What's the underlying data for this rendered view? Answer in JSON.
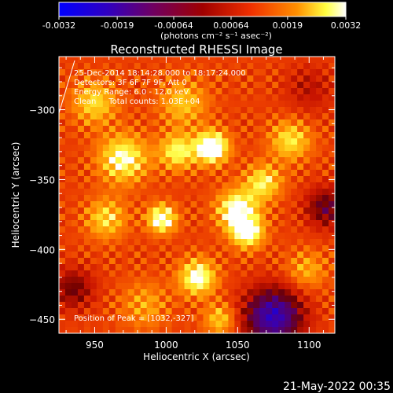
{
  "chart_data": {
    "type": "heatmap",
    "title": "Reconstructed RHESSI Image",
    "xlabel": "Heliocentric X (arcsec)",
    "ylabel": "Heliocentric Y (arcsec)",
    "xlim": [
      925,
      1118
    ],
    "ylim": [
      -460,
      -262
    ],
    "x_ticks": [
      950,
      1000,
      1050,
      1100
    ],
    "y_ticks": [
      -300,
      -350,
      -400,
      -450
    ],
    "colorbar": {
      "ticks": [
        "-0.0032",
        "-0.0019",
        "-0.00064",
        "0.00064",
        "0.0019",
        "0.0032"
      ],
      "range": [
        -0.0032,
        0.0032
      ],
      "unit_label": "(photons cm⁻² s⁻¹ asec⁻²)",
      "colors": [
        "#0000ff",
        "#400080",
        "#800000",
        "#e02000",
        "#ff8000",
        "#ffff40",
        "#ffffff"
      ]
    },
    "annotations": [
      "25-Dec-2014 18:14:28.000 to 18:17:24.000",
      "Detectors: 3F 6F 7F 9F, Att 0",
      "Energy Range: 6.0 - 12.0 keV",
      "Clean     Total counts: 1.03E+04"
    ],
    "peak_label": "Position of Peak = [1032,-327]",
    "peak": [
      1032,
      -327
    ],
    "sources": [
      {
        "x": 1032,
        "y": -327,
        "flux": 0.0032,
        "sigma": 8
      },
      {
        "x": 997,
        "y": -378,
        "flux": 0.0028,
        "sigma": 7
      },
      {
        "x": 1050,
        "y": -372,
        "flux": 0.0027,
        "sigma": 10
      },
      {
        "x": 1057,
        "y": -388,
        "flux": 0.0025,
        "sigma": 8
      },
      {
        "x": 1022,
        "y": -420,
        "flux": 0.0026,
        "sigma": 9
      },
      {
        "x": 970,
        "y": -335,
        "flux": 0.0024,
        "sigma": 12
      },
      {
        "x": 1008,
        "y": -330,
        "flux": 0.0022,
        "sigma": 9
      },
      {
        "x": 1068,
        "y": -352,
        "flux": 0.0021,
        "sigma": 9
      },
      {
        "x": 1087,
        "y": -322,
        "flux": 0.002,
        "sigma": 10
      },
      {
        "x": 958,
        "y": -378,
        "flux": 0.0019,
        "sigma": 10
      },
      {
        "x": 1038,
        "y": -450,
        "flux": 0.0018,
        "sigma": 8
      },
      {
        "x": 950,
        "y": -295,
        "flux": 0.0019,
        "sigma": 11
      },
      {
        "x": 1098,
        "y": -415,
        "flux": 0.0015,
        "sigma": 10
      },
      {
        "x": 1012,
        "y": -295,
        "flux": 0.0017,
        "sigma": 12
      },
      {
        "x": 985,
        "y": -440,
        "flux": 0.0014,
        "sigma": 12
      }
    ],
    "background": 0.0013,
    "negative_regions": [
      {
        "x": 1075,
        "y": -448,
        "flux": -0.0034,
        "sigma": 14
      },
      {
        "x": 935,
        "y": -428,
        "flux": -0.0015,
        "sigma": 10
      },
      {
        "x": 1112,
        "y": -370,
        "flux": -0.0018,
        "sigma": 10
      },
      {
        "x": 1100,
        "y": -285,
        "flux": -0.0008,
        "sigma": 12
      }
    ]
  },
  "footer": {
    "timestamp": "21-May-2022 00:35"
  }
}
